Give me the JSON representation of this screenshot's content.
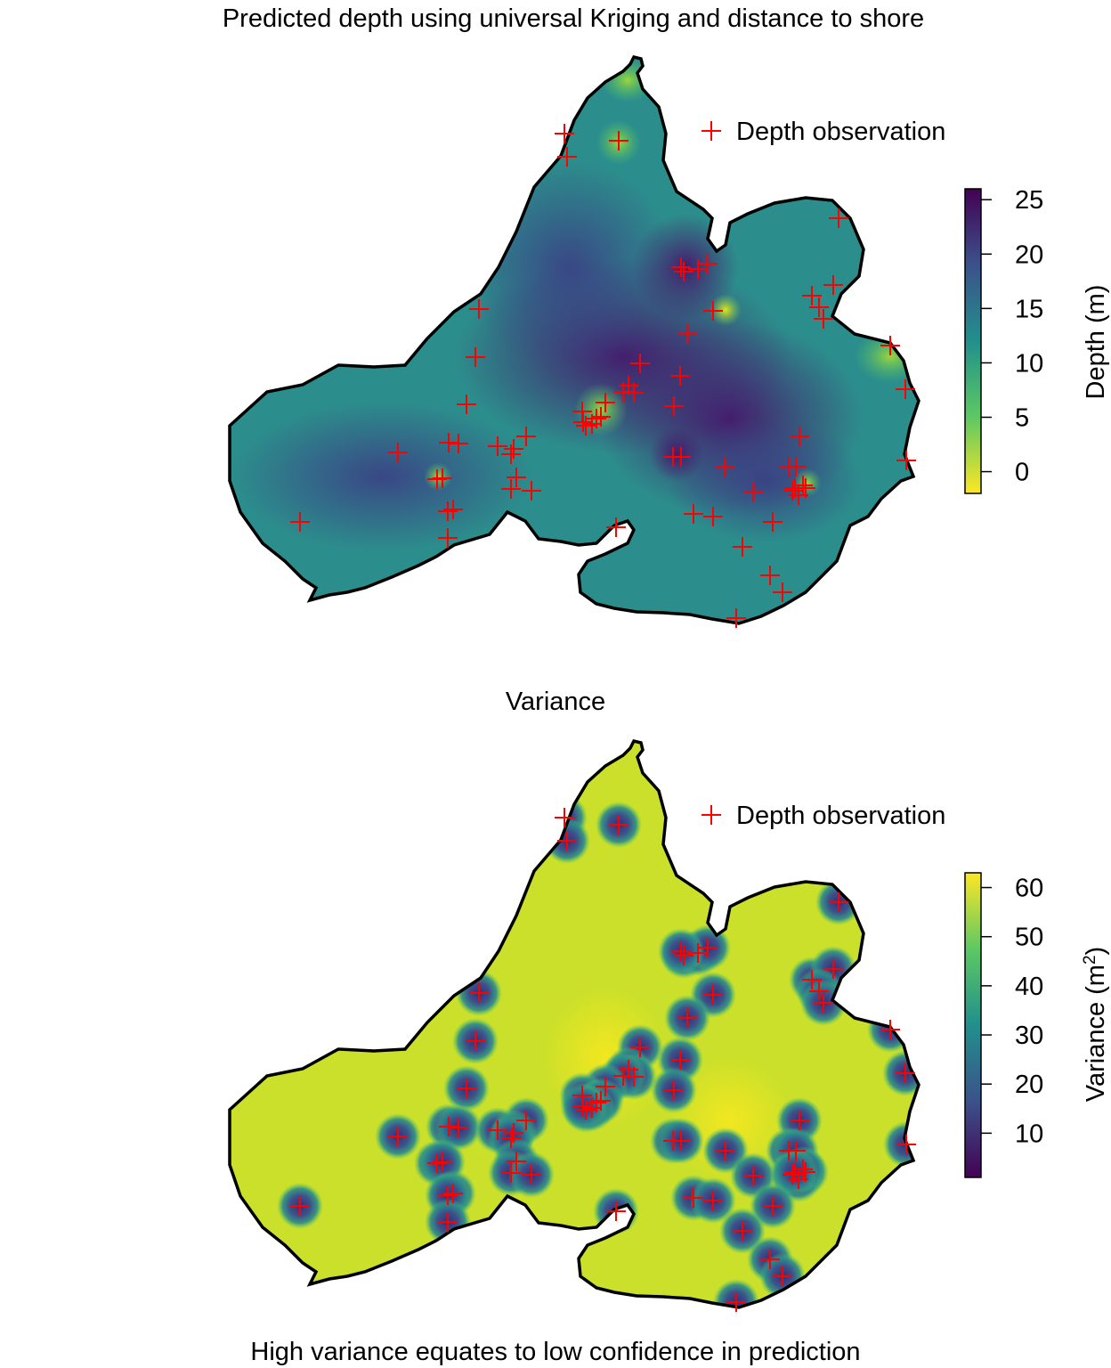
{
  "top_panel": {
    "title": "Predicted depth using universal Kriging and distance to shore",
    "legend_label": "Depth observation",
    "colorbar_title": "Depth (m)",
    "colorbar_ticks": [
      "25",
      "20",
      "15",
      "10",
      "5",
      "0"
    ],
    "colorbar_range": [
      -2,
      26
    ],
    "colors": {
      "high": "#440154",
      "mid_high": "#3b528b",
      "mid": "#21908c",
      "mid_low": "#5dc863",
      "low": "#fde725"
    }
  },
  "bottom_panel": {
    "title": "Variance",
    "legend_label": "Depth observation",
    "colorbar_title": "Variance (m",
    "colorbar_title_sup": "2",
    "colorbar_title_end": ")",
    "colorbar_ticks": [
      "60",
      "50",
      "40",
      "30",
      "20",
      "10"
    ],
    "colorbar_range": [
      1,
      63
    ],
    "caption": "High variance equates to low confidence in prediction"
  },
  "marker_color": "#ff0000"
}
